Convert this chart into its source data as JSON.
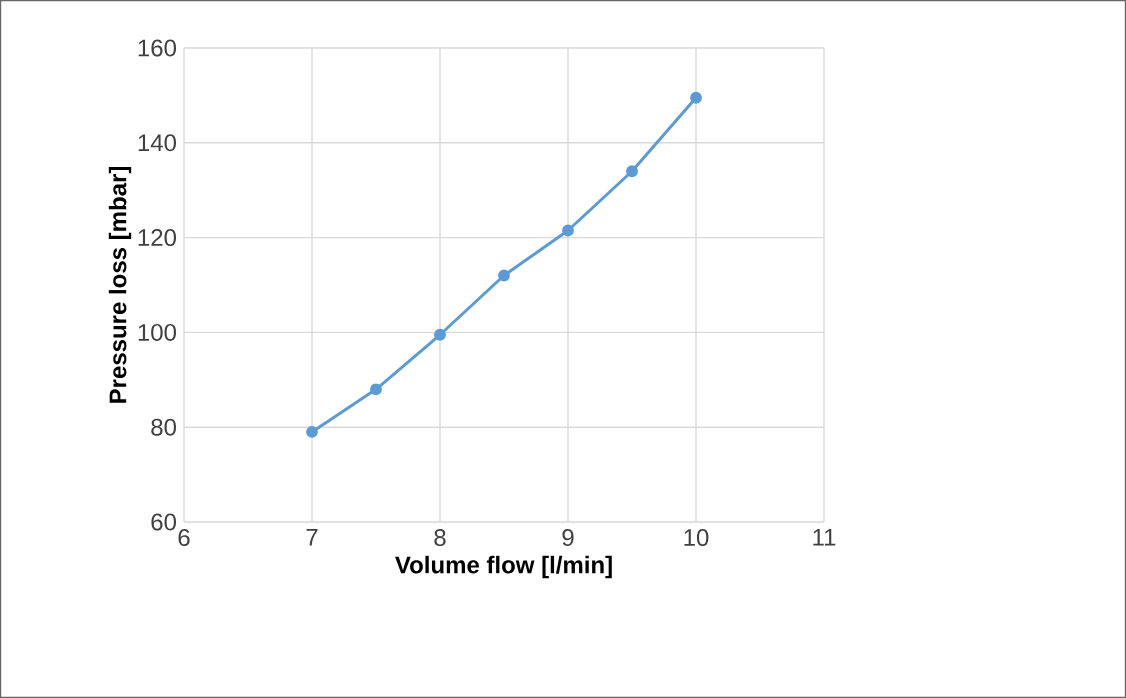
{
  "chart_data": {
    "type": "line",
    "xlabel": "Volume flow [l/min]",
    "ylabel": "Pressure loss [mbar]",
    "x": [
      7,
      7.5,
      8,
      8.5,
      9,
      9.5,
      10
    ],
    "series": [
      {
        "color": "#5b9bd5",
        "values": [
          79,
          88,
          99.5,
          112,
          121.5,
          134,
          149.5
        ]
      }
    ],
    "xlim": [
      6,
      11
    ],
    "xticks": [
      6,
      7,
      8,
      9,
      10,
      11
    ],
    "ylim": [
      60,
      160
    ],
    "yticks": [
      60,
      80,
      100,
      120,
      140,
      160
    ],
    "grid": true,
    "marker": "circle",
    "line_style": "solid"
  }
}
